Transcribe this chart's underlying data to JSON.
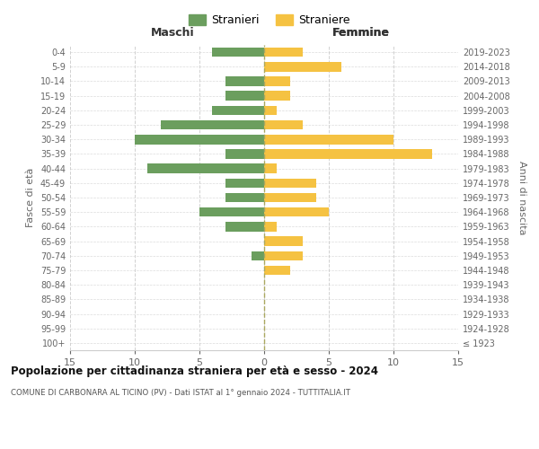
{
  "age_groups": [
    "100+",
    "95-99",
    "90-94",
    "85-89",
    "80-84",
    "75-79",
    "70-74",
    "65-69",
    "60-64",
    "55-59",
    "50-54",
    "45-49",
    "40-44",
    "35-39",
    "30-34",
    "25-29",
    "20-24",
    "15-19",
    "10-14",
    "5-9",
    "0-4"
  ],
  "birth_years": [
    "≤ 1923",
    "1924-1928",
    "1929-1933",
    "1934-1938",
    "1939-1943",
    "1944-1948",
    "1949-1953",
    "1954-1958",
    "1959-1963",
    "1964-1968",
    "1969-1973",
    "1974-1978",
    "1979-1983",
    "1984-1988",
    "1989-1993",
    "1994-1998",
    "1999-2003",
    "2004-2008",
    "2009-2013",
    "2014-2018",
    "2019-2023"
  ],
  "stranieri": [
    0,
    0,
    0,
    0,
    0,
    0,
    1,
    0,
    3,
    5,
    3,
    3,
    9,
    3,
    10,
    8,
    4,
    3,
    3,
    0,
    4
  ],
  "straniere": [
    0,
    0,
    0,
    0,
    0,
    2,
    3,
    3,
    1,
    5,
    4,
    4,
    1,
    13,
    10,
    3,
    1,
    2,
    2,
    6,
    3
  ],
  "stranieri_color": "#6b9e5e",
  "straniere_color": "#f5c242",
  "title": "Popolazione per cittadinanza straniera per età e sesso - 2024",
  "subtitle": "COMUNE DI CARBONARA AL TICINO (PV) - Dati ISTAT al 1° gennaio 2024 - TUTTITALIA.IT",
  "xlabel_left": "Maschi",
  "xlabel_right": "Femmine",
  "ylabel_left": "Fasce di età",
  "ylabel_right": "Anni di nascita",
  "legend_stranieri": "Stranieri",
  "legend_straniere": "Straniere",
  "xlim": 15,
  "background_color": "#ffffff",
  "grid_color": "#cccccc"
}
